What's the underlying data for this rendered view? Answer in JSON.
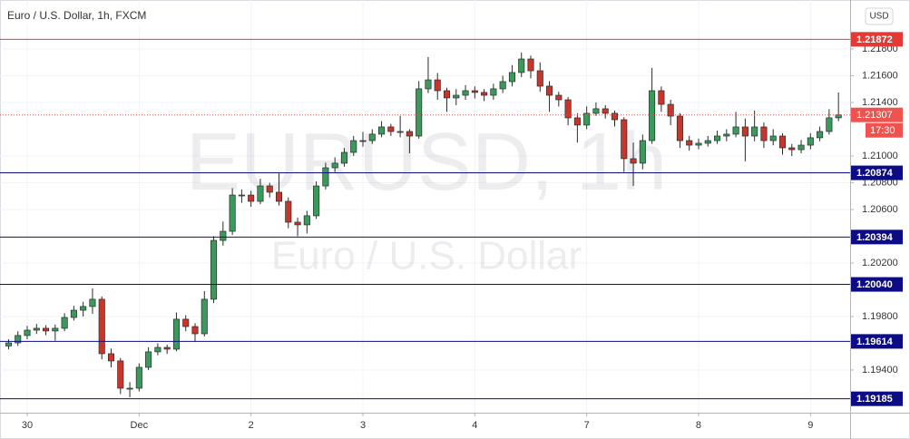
{
  "chart_data": {
    "type": "candlestick",
    "title": "Euro / U.S. Dollar, 1h, FXCM",
    "watermark": [
      "EURUSD, 1h",
      "Euro / U.S. Dollar"
    ],
    "currency": "USD",
    "up_color": "#3a9a5c",
    "down_color": "#c8352b",
    "grid": true,
    "x": [
      -4,
      -2,
      0,
      2,
      4,
      6,
      8,
      10,
      12,
      14,
      16,
      18,
      20,
      22,
      24,
      26,
      28,
      30,
      32,
      34,
      36,
      38,
      40,
      42,
      44,
      46,
      48,
      50,
      52,
      54,
      56,
      58,
      60,
      62,
      64,
      66,
      68,
      70,
      72,
      74,
      76,
      78,
      80,
      82,
      84,
      86,
      88,
      90,
      92,
      94,
      96,
      98,
      100,
      102,
      104,
      106,
      108,
      110,
      112,
      114,
      116,
      118,
      120,
      122,
      124,
      126,
      128,
      130,
      132,
      134,
      136,
      138,
      140,
      142,
      144,
      146,
      148,
      150,
      152,
      154,
      156,
      158,
      160,
      162,
      164,
      166,
      168,
      170,
      172,
      174
    ],
    "open": [
      1.1958,
      1.19603,
      1.19658,
      1.19698,
      1.19712,
      1.19692,
      1.19712,
      1.19793,
      1.19847,
      1.19875,
      1.19929,
      1.19522,
      1.19468,
      1.19264,
      1.19264,
      1.1942,
      1.19536,
      1.19569,
      1.19556,
      1.1978,
      1.19725,
      1.19671,
      1.19929,
      1.20369,
      1.20437,
      1.20708,
      1.20708,
      1.20661,
      1.20776,
      1.20729,
      1.20661,
      1.20505,
      1.20485,
      1.20553,
      1.20776,
      1.20912,
      1.20946,
      1.21027,
      1.21115,
      1.21115,
      1.21163,
      1.21217,
      1.21183,
      1.21183,
      1.21149,
      1.21502,
      1.21569,
      1.21488,
      1.21434,
      1.21454,
      1.21488,
      1.21475,
      1.21454,
      1.21502,
      1.21556,
      1.21624,
      1.21725,
      1.21637,
      1.21522,
      1.21454,
      1.2142,
      1.21285,
      1.21231,
      1.21319,
      1.21353,
      1.21319,
      1.21271,
      1.2098,
      1.20946,
      1.21115,
      1.21488,
      1.21386,
      1.21298,
      1.21115,
      1.21081,
      1.21095,
      1.21115,
      1.21149,
      1.21163,
      1.21217,
      1.21149,
      1.21217,
      1.21115,
      1.21149,
      1.21061,
      1.21047,
      1.21081,
      1.21136,
      1.21183,
      1.21285
    ],
    "high": [
      1.1963,
      1.1969,
      1.1973,
      1.19745,
      1.19735,
      1.1974,
      1.19825,
      1.1988,
      1.1991,
      1.2001,
      1.1995,
      1.1956,
      1.1949,
      1.1931,
      1.1945,
      1.1957,
      1.196,
      1.1959,
      1.1983,
      1.1981,
      1.1975,
      1.1999,
      1.204,
      1.2051,
      1.2076,
      1.2075,
      1.2074,
      1.2083,
      1.208,
      1.2087,
      1.2069,
      1.2054,
      1.2059,
      1.2081,
      1.2095,
      1.2099,
      1.2106,
      1.2115,
      1.2118,
      1.212,
      1.2126,
      1.2124,
      1.213,
      1.212,
      1.2156,
      1.2174,
      1.2162,
      1.2151,
      1.215,
      1.2153,
      1.2152,
      1.215,
      1.2154,
      1.216,
      1.2168,
      1.21773,
      1.2175,
      1.217,
      1.2156,
      1.2148,
      1.2144,
      1.2132,
      1.2137,
      1.214,
      1.2138,
      1.2134,
      1.2129,
      1.211,
      1.2116,
      1.21658,
      1.2152,
      1.2142,
      1.2132,
      1.2115,
      1.2113,
      1.2115,
      1.2119,
      1.212,
      1.2133,
      1.2128,
      1.2134,
      1.2125,
      1.212,
      1.2117,
      1.2109,
      1.2112,
      1.2117,
      1.2122,
      1.2135,
      1.21475
    ],
    "low": [
      1.19555,
      1.1958,
      1.1963,
      1.1967,
      1.1966,
      1.1962,
      1.1969,
      1.1977,
      1.198,
      1.1982,
      1.1948,
      1.1942,
      1.1922,
      1.19197,
      1.1924,
      1.194,
      1.1951,
      1.1952,
      1.1954,
      1.1969,
      1.1961,
      1.1965,
      1.199,
      1.2033,
      1.2041,
      1.2065,
      1.2062,
      1.2064,
      1.2069,
      1.2063,
      1.2046,
      1.204,
      1.2042,
      1.2053,
      1.2075,
      1.2088,
      1.2092,
      1.21,
      1.2107,
      1.2109,
      1.2114,
      1.2115,
      1.2114,
      1.2102,
      1.2113,
      1.2147,
      1.2142,
      1.2133,
      1.2138,
      1.2142,
      1.2143,
      1.2141,
      1.2142,
      1.2147,
      1.2152,
      1.2159,
      1.2158,
      1.2148,
      1.2133,
      1.2137,
      1.2123,
      1.211,
      1.212,
      1.213,
      1.2128,
      1.2122,
      1.2088,
      1.20776,
      1.209,
      1.2109,
      1.2133,
      1.2123,
      1.2106,
      1.2104,
      1.2105,
      1.2107,
      1.2109,
      1.2111,
      1.2114,
      1.2096,
      1.2111,
      1.2106,
      1.2108,
      1.2101,
      1.21,
      1.2102,
      1.2105,
      1.2111,
      1.2116,
      1.2126
    ],
    "close": [
      1.19603,
      1.19658,
      1.19698,
      1.19712,
      1.19692,
      1.19712,
      1.19793,
      1.19847,
      1.19875,
      1.19929,
      1.19522,
      1.19468,
      1.19264,
      1.19264,
      1.1942,
      1.19536,
      1.19569,
      1.19556,
      1.1978,
      1.19725,
      1.19671,
      1.19929,
      1.20369,
      1.20437,
      1.20708,
      1.20708,
      1.20661,
      1.20776,
      1.20729,
      1.20661,
      1.20505,
      1.20485,
      1.20553,
      1.20776,
      1.20912,
      1.20946,
      1.21027,
      1.21115,
      1.21115,
      1.21163,
      1.21217,
      1.21183,
      1.21183,
      1.21149,
      1.21502,
      1.21569,
      1.21488,
      1.21434,
      1.21454,
      1.21488,
      1.21475,
      1.21454,
      1.21502,
      1.21556,
      1.21624,
      1.21725,
      1.21637,
      1.21522,
      1.21454,
      1.2142,
      1.21285,
      1.21231,
      1.21319,
      1.21353,
      1.21319,
      1.21271,
      1.2098,
      1.20946,
      1.21115,
      1.21488,
      1.21386,
      1.21298,
      1.21115,
      1.21081,
      1.21095,
      1.21115,
      1.21149,
      1.21163,
      1.21217,
      1.21149,
      1.21217,
      1.21115,
      1.21149,
      1.21061,
      1.21047,
      1.21081,
      1.21136,
      1.21183,
      1.21285,
      1.21307
    ],
    "xlim": [
      -5.84,
      176.5
    ],
    "xticks": [
      {
        "value": 0,
        "label": "30"
      },
      {
        "value": 24,
        "label": "Dec"
      },
      {
        "value": 48,
        "label": "2"
      },
      {
        "value": 72,
        "label": "3"
      },
      {
        "value": 96,
        "label": "4"
      },
      {
        "value": 120,
        "label": "7"
      },
      {
        "value": 144,
        "label": "8"
      },
      {
        "value": 168,
        "label": "9"
      }
    ],
    "ylim": [
      1.19081,
      1.22166
    ],
    "yticks": [
      {
        "value": 1.218,
        "label": "1.21800"
      },
      {
        "value": 1.216,
        "label": "1.21600"
      },
      {
        "value": 1.214,
        "label": "1.21400"
      },
      {
        "value": 1.21,
        "label": "1.21000"
      },
      {
        "value": 1.208,
        "label": "1.20800"
      },
      {
        "value": 1.206,
        "label": "1.20600"
      },
      {
        "value": 1.202,
        "label": "1.20200"
      },
      {
        "value": 1.198,
        "label": "1.19800"
      },
      {
        "value": 1.194,
        "label": "1.19400"
      }
    ],
    "levels": [
      {
        "value": 1.21872,
        "label": "1.21872",
        "color": "#e53935"
      },
      {
        "value": 1.20874,
        "label": "1.20874",
        "color": "#0c0c86"
      },
      {
        "value": 1.20394,
        "label": "1.20394",
        "color": "#0c0c86"
      },
      {
        "value": 1.2004,
        "label": "1.20040",
        "color": "#0c0c86"
      },
      {
        "value": 1.19614,
        "label": "1.19614",
        "color": "#0c0c86"
      },
      {
        "value": 1.19185,
        "label": "1.19185",
        "color": "#0c0c86"
      }
    ],
    "last_price": 1.21307,
    "last_color": "#ef5350",
    "countdown": "17:30"
  }
}
